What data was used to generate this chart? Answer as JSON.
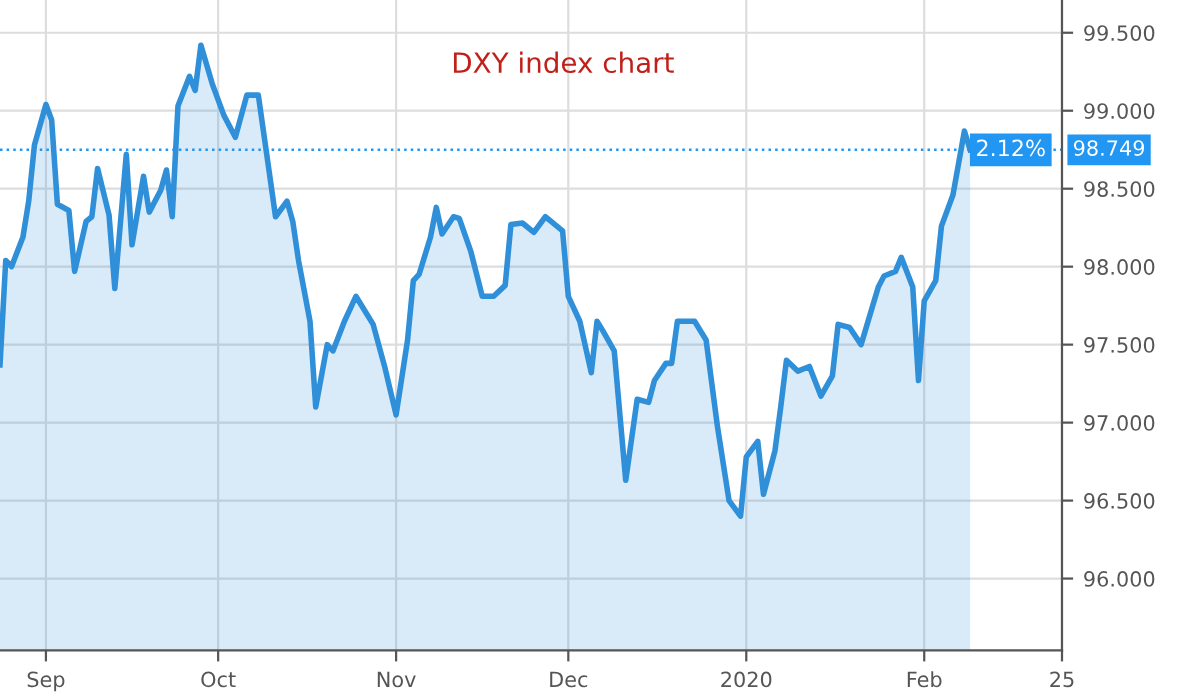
{
  "chart_data": {
    "type": "area",
    "title": "DXY index chart",
    "x": [
      "2019-08-24",
      "2019-08-25",
      "2019-08-26",
      "2019-08-28",
      "2019-08-29",
      "2019-08-30",
      "2019-09-01",
      "2019-09-02",
      "2019-09-03",
      "2019-09-05",
      "2019-09-06",
      "2019-09-08",
      "2019-09-09",
      "2019-09-10",
      "2019-09-12",
      "2019-09-13",
      "2019-09-15",
      "2019-09-16",
      "2019-09-18",
      "2019-09-19",
      "2019-09-21",
      "2019-09-22",
      "2019-09-23",
      "2019-09-24",
      "2019-09-26",
      "2019-09-27",
      "2019-09-28",
      "2019-09-30",
      "2019-10-02",
      "2019-10-04",
      "2019-10-06",
      "2019-10-08",
      "2019-10-10",
      "2019-10-11",
      "2019-10-13",
      "2019-10-14",
      "2019-10-15",
      "2019-10-17",
      "2019-10-18",
      "2019-10-20",
      "2019-10-21",
      "2019-10-23",
      "2019-10-25",
      "2019-10-27",
      "2019-10-28",
      "2019-10-30",
      "2019-11-01",
      "2019-11-03",
      "2019-11-04",
      "2019-11-05",
      "2019-11-07",
      "2019-11-08",
      "2019-11-09",
      "2019-11-11",
      "2019-11-12",
      "2019-11-14",
      "2019-11-16",
      "2019-11-18",
      "2019-11-20",
      "2019-11-21",
      "2019-11-23",
      "2019-11-25",
      "2019-11-27",
      "2019-11-28",
      "2019-11-30",
      "2019-12-01",
      "2019-12-03",
      "2019-12-05",
      "2019-12-06",
      "2019-12-07",
      "2019-12-09",
      "2019-12-11",
      "2019-12-13",
      "2019-12-15",
      "2019-12-16",
      "2019-12-18",
      "2019-12-19",
      "2019-12-20",
      "2019-12-23",
      "2019-12-25",
      "2019-12-27",
      "2019-12-29",
      "2019-12-31",
      "2020-01-01",
      "2020-01-03",
      "2020-01-04",
      "2020-01-06",
      "2020-01-07",
      "2020-01-08",
      "2020-01-10",
      "2020-01-12",
      "2020-01-14",
      "2020-01-16",
      "2020-01-17",
      "2020-01-19",
      "2020-01-21",
      "2020-01-24",
      "2020-01-25",
      "2020-01-27",
      "2020-01-28",
      "2020-01-30",
      "2020-01-31",
      "2020-02-01",
      "2020-02-03",
      "2020-02-04",
      "2020-02-06",
      "2020-02-08",
      "2020-02-09"
    ],
    "series": [
      {
        "color": "#2f8fd8",
        "values": [
          97.37,
          98.04,
          98.0,
          98.19,
          98.42,
          98.78,
          99.04,
          98.94,
          98.4,
          98.36,
          97.97,
          98.29,
          98.32,
          98.63,
          98.33,
          97.86,
          98.72,
          98.14,
          98.58,
          98.35,
          98.49,
          98.62,
          98.32,
          99.03,
          99.22,
          99.13,
          99.42,
          99.17,
          98.97,
          98.83,
          99.1,
          99.1,
          98.58,
          98.32,
          98.42,
          98.29,
          98.04,
          97.65,
          97.1,
          97.5,
          97.46,
          97.65,
          97.81,
          97.69,
          97.63,
          97.36,
          97.05,
          97.53,
          97.91,
          97.95,
          98.19,
          98.38,
          98.21,
          98.32,
          98.31,
          98.1,
          97.81,
          97.81,
          97.88,
          98.27,
          98.28,
          98.22,
          98.32,
          98.29,
          98.23,
          97.81,
          97.65,
          97.32,
          97.65,
          97.59,
          97.46,
          96.63,
          97.15,
          97.13,
          97.27,
          97.38,
          97.38,
          97.65,
          97.65,
          97.53,
          96.97,
          96.5,
          96.4,
          96.78,
          96.88,
          96.54,
          96.82,
          97.1,
          97.4,
          97.33,
          97.36,
          97.17,
          97.3,
          97.63,
          97.61,
          97.5,
          97.87,
          97.94,
          97.97,
          98.06,
          97.87,
          97.27,
          97.78,
          97.91,
          98.26,
          98.46,
          98.87,
          98.749
        ]
      }
    ],
    "xlim": [
      "2019-08-24",
      "2020-02-25"
    ],
    "xticks": [
      {
        "value": "2019-09-01",
        "label": "Sep"
      },
      {
        "value": "2019-10-01",
        "label": "Oct"
      },
      {
        "value": "2019-11-01",
        "label": "Nov"
      },
      {
        "value": "2019-12-01",
        "label": "Dec"
      },
      {
        "value": "2020-01-01",
        "label": "2020"
      },
      {
        "value": "2020-02-01",
        "label": "Feb"
      },
      {
        "value": "2020-02-25",
        "label": "25"
      }
    ],
    "ylim": [
      95.54,
      99.71
    ],
    "yticks": [
      {
        "value": 96,
        "label": "96.000"
      },
      {
        "value": 96.5,
        "label": "96.500"
      },
      {
        "value": 97,
        "label": "97.000"
      },
      {
        "value": 97.5,
        "label": "97.500"
      },
      {
        "value": 98,
        "label": "98.000"
      },
      {
        "value": 98.5,
        "label": "98.500"
      },
      {
        "value": 99,
        "label": "99.000"
      },
      {
        "value": 99.5,
        "label": "99.500"
      }
    ],
    "ref_lines": [
      {
        "axis": "y",
        "value": 98.749,
        "label": "98.749",
        "color": "#2196f3",
        "line_style": "dotted"
      }
    ],
    "annotations": [
      "2.12%"
    ],
    "grid": true,
    "legend": false,
    "marker": "none",
    "line_style": "solid"
  }
}
